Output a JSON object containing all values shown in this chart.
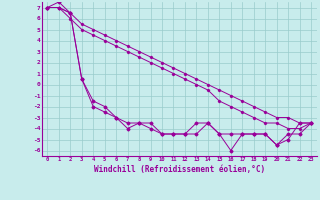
{
  "title": "",
  "xlabel": "Windchill (Refroidissement éolien,°C)",
  "bg_color": "#c8ecec",
  "line_color": "#990099",
  "grid_color": "#99cccc",
  "x_data": [
    0,
    1,
    2,
    3,
    4,
    5,
    6,
    7,
    8,
    9,
    10,
    11,
    12,
    13,
    14,
    15,
    16,
    17,
    18,
    19,
    20,
    21,
    22,
    23
  ],
  "series1": [
    7.0,
    7.0,
    6.5,
    5.5,
    5.0,
    4.5,
    4.0,
    3.5,
    3.0,
    2.5,
    2.0,
    1.5,
    1.0,
    0.5,
    0.0,
    -0.5,
    -1.0,
    -1.5,
    -2.0,
    -2.5,
    -3.0,
    -3.0,
    -3.5,
    -3.5
  ],
  "series2": [
    7.0,
    7.0,
    6.0,
    5.0,
    4.5,
    4.0,
    3.5,
    3.0,
    2.5,
    2.0,
    1.5,
    1.0,
    0.5,
    0.0,
    -0.5,
    -1.5,
    -2.0,
    -2.5,
    -3.0,
    -3.5,
    -3.5,
    -4.0,
    -4.0,
    -3.5
  ],
  "series3": [
    7.0,
    7.0,
    6.5,
    0.5,
    -1.5,
    -2.0,
    -3.0,
    -3.5,
    -3.5,
    -3.5,
    -4.5,
    -4.5,
    -4.5,
    -4.5,
    -3.5,
    -4.5,
    -4.5,
    -4.5,
    -4.5,
    -4.5,
    -5.5,
    -5.0,
    -3.5,
    -3.5
  ],
  "series4": [
    7.0,
    7.5,
    6.5,
    0.5,
    -2.0,
    -2.5,
    -3.0,
    -4.0,
    -3.5,
    -4.0,
    -4.5,
    -4.5,
    -4.5,
    -3.5,
    -3.5,
    -4.5,
    -6.0,
    -4.5,
    -4.5,
    -4.5,
    -5.5,
    -4.5,
    -4.5,
    -3.5
  ],
  "ylim": [
    -6.5,
    7.5
  ],
  "xlim": [
    -0.5,
    23.5
  ],
  "yticks": [
    7,
    6,
    5,
    4,
    3,
    2,
    1,
    0,
    -1,
    -2,
    -3,
    -4,
    -5,
    -6
  ],
  "xticks": [
    0,
    1,
    2,
    3,
    4,
    5,
    6,
    7,
    8,
    9,
    10,
    11,
    12,
    13,
    14,
    15,
    16,
    17,
    18,
    19,
    20,
    21,
    22,
    23
  ]
}
